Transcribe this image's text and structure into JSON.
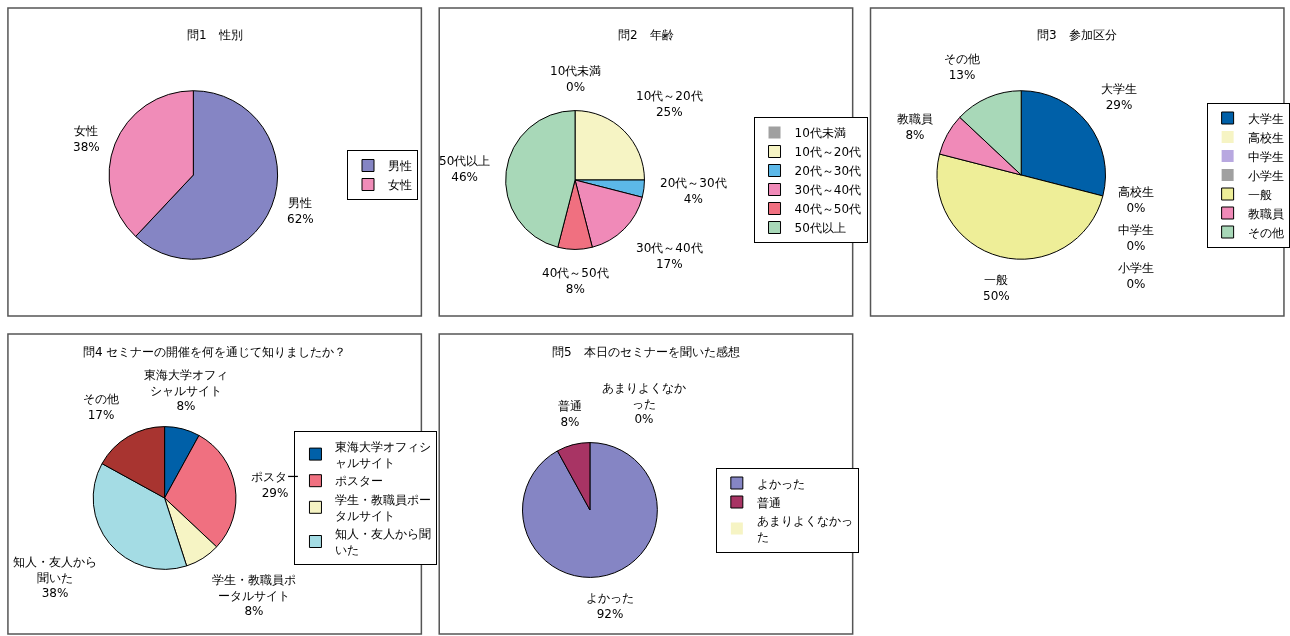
{
  "chart_data": [
    {
      "type": "pie",
      "title": "問1　性別",
      "categories": [
        "男性",
        "女性"
      ],
      "values": [
        62,
        38
      ],
      "colors": [
        "#8585c4",
        "#f08cb8"
      ],
      "value_labels": [
        "62%",
        "38%"
      ],
      "legend": "right"
    },
    {
      "type": "pie",
      "title": "問2　年齢",
      "categories": [
        "10代未満",
        "10代～20代",
        "20代～30代",
        "30代～40代",
        "40代～50代",
        "50代以上"
      ],
      "values": [
        0,
        25,
        4,
        17,
        8,
        46
      ],
      "colors": [
        "#a0a0a0",
        "#f6f4c4",
        "#5cb8e8",
        "#f08ab8",
        "#f07080",
        "#a8d8b8"
      ],
      "value_labels": [
        "0%",
        "25%",
        "4%",
        "17%",
        "8%",
        "46%"
      ],
      "legend": "right"
    },
    {
      "type": "pie",
      "title": "問3　参加区分",
      "categories": [
        "大学生",
        "高校生",
        "中学生",
        "小学生",
        "一般",
        "教職員",
        "その他"
      ],
      "values": [
        29,
        0,
        0,
        0,
        50,
        8,
        13
      ],
      "colors": [
        "#0060a8",
        "#f6f4c4",
        "#b8a8e0",
        "#a0a0a0",
        "#eeee98",
        "#f08ab8",
        "#a8d8b8"
      ],
      "value_labels": [
        "29%",
        "0%",
        "0%",
        "0%",
        "50%",
        "8%",
        "13%"
      ],
      "legend": "right"
    },
    {
      "type": "pie",
      "title": "問4 セミナーの開催を何を通じて知りましたか？",
      "categories": [
        "東海大学オフィシャルサイト",
        "ポスター",
        "学生・教職員ポータルサイト",
        "知人・友人から聞いた",
        "その他"
      ],
      "values": [
        8,
        29,
        8,
        38,
        17
      ],
      "colors": [
        "#0060a8",
        "#f07080",
        "#f6f4c4",
        "#a4dce4",
        "#a83430"
      ],
      "value_labels": [
        "8%",
        "29%",
        "8%",
        "38%",
        "17%"
      ],
      "legend": "right"
    },
    {
      "type": "pie",
      "title": "問5　本日のセミナーを聞いた感想",
      "categories": [
        "よかった",
        "普通",
        "あまりよくなかった"
      ],
      "values": [
        92,
        8,
        0
      ],
      "colors": [
        "#8585c4",
        "#a83464",
        "#f6f4c4"
      ],
      "value_labels": [
        "92%",
        "8%",
        "0%"
      ],
      "legend": "right"
    }
  ]
}
